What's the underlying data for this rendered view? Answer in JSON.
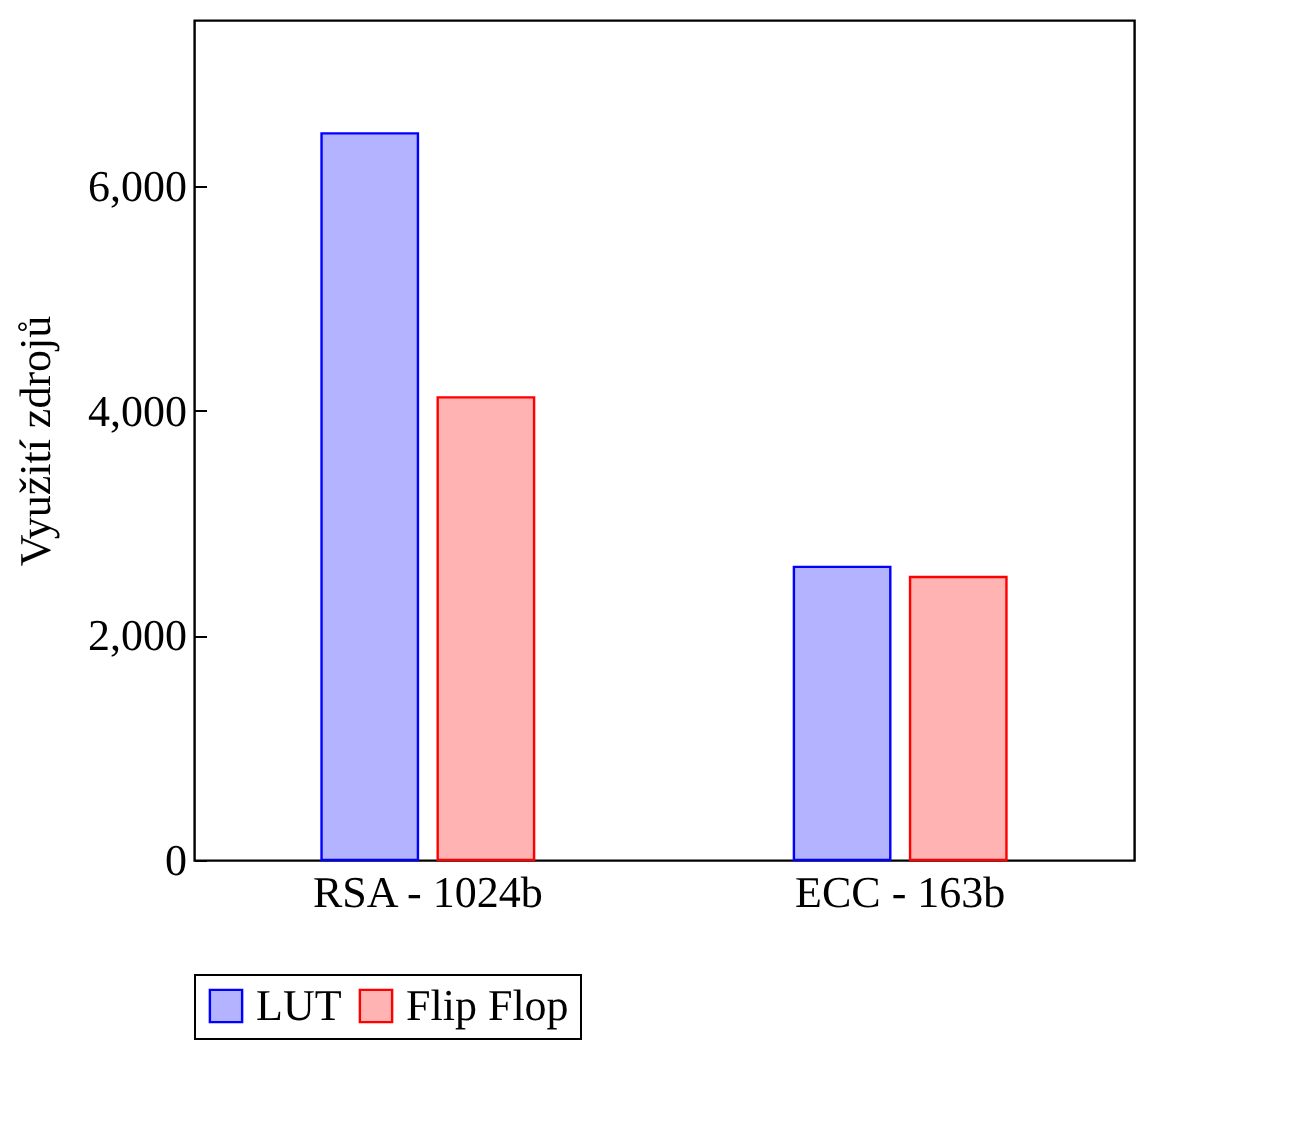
{
  "chart_data": {
    "type": "bar",
    "ylabel": "Využití zdrojů",
    "categories": [
      "RSA - 1024b",
      "ECC - 163b"
    ],
    "series": [
      {
        "name": "LUT",
        "color": "#b3b3ff",
        "values": [
          6470,
          2610
        ]
      },
      {
        "name": "Flip Flop",
        "color": "#ffb3b3",
        "values": [
          4120,
          2520
        ]
      }
    ],
    "ylim": [
      0,
      7480
    ],
    "yticks": [
      {
        "value": 0,
        "label": "0"
      },
      {
        "value": 2000,
        "label": "2,000"
      },
      {
        "value": 4000,
        "label": "4,000"
      },
      {
        "value": 6000,
        "label": "6,000"
      }
    ],
    "grid": false,
    "legend": "bottom"
  }
}
